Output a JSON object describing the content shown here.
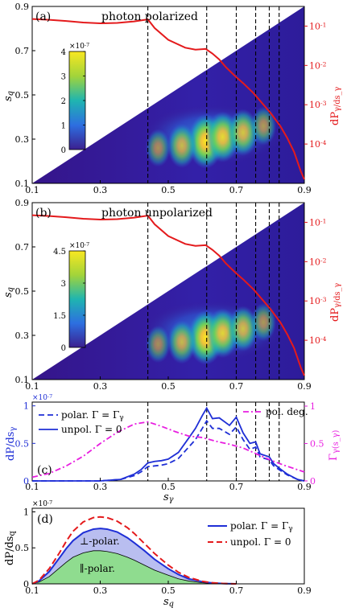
{
  "colors": {
    "red": "#e41a1c",
    "blue": "#1f2fd6",
    "magenta": "#e81ee0",
    "black": "#000000",
    "map_low": "#3b0f70",
    "map_high": "#f9e721",
    "perp_fill": "#b9bef0",
    "par_fill": "#8fdc8f"
  },
  "chart_data": [
    {
      "type": "heatmap",
      "panel": "(a)",
      "title": "photon polarized",
      "ylabel": "s_q",
      "y2label": "dP_γ/ds_γ",
      "x_ticks": [
        "0.1",
        "0.3",
        "0.5",
        "0.7",
        "0.9"
      ],
      "y_ticks": [
        "0.1",
        "0.3",
        "0.5",
        "0.7",
        "0.9"
      ],
      "y2_ticks": [
        "10^{-1}",
        "10^{-2}",
        "10^{-3}",
        "10^{-4}"
      ],
      "xlim": [
        0.1,
        0.9
      ],
      "ylim": [
        0.1,
        0.9
      ],
      "colorbar": {
        "exponent": "×10^{-7}",
        "ticks": [
          "4",
          "3",
          "2",
          "1",
          "0"
        ],
        "max": 4
      },
      "vlines": [
        0.44,
        0.613,
        0.7,
        0.757,
        0.797,
        0.826
      ],
      "hot_spots": [
        {
          "x": 0.61,
          "y": 0.29,
          "value": 4.0
        },
        {
          "x": 0.66,
          "y": 0.31,
          "value": 3.4
        },
        {
          "x": 0.72,
          "y": 0.33,
          "value": 2.8
        },
        {
          "x": 0.54,
          "y": 0.27,
          "value": 2.4
        },
        {
          "x": 0.78,
          "y": 0.36,
          "value": 1.6
        },
        {
          "x": 0.47,
          "y": 0.26,
          "value": 1.4
        }
      ],
      "spectrum": {
        "x": [
          0.1,
          0.15,
          0.2,
          0.25,
          0.3,
          0.35,
          0.4,
          0.44,
          0.46,
          0.5,
          0.55,
          0.58,
          0.61,
          0.63,
          0.65,
          0.67,
          0.7,
          0.72,
          0.75,
          0.77,
          0.8,
          0.83,
          0.85,
          0.87,
          0.89,
          0.9
        ],
        "log10y": [
          -0.82,
          -0.84,
          -0.87,
          -0.91,
          -0.93,
          -0.92,
          -0.88,
          -0.83,
          -1.05,
          -1.35,
          -1.55,
          -1.6,
          -1.58,
          -1.7,
          -1.85,
          -2.05,
          -2.3,
          -2.45,
          -2.7,
          -2.9,
          -3.2,
          -3.55,
          -3.85,
          -4.2,
          -4.7,
          -4.9
        ]
      }
    },
    {
      "type": "heatmap",
      "panel": "(b)",
      "title": "photon unpolarized",
      "ylabel": "s_q",
      "y2label": "dP_γ/ds_γ",
      "x_ticks": [
        "0.1",
        "0.3",
        "0.5",
        "0.7",
        "0.9"
      ],
      "y_ticks": [
        "0.1",
        "0.3",
        "0.5",
        "0.7",
        "0.9"
      ],
      "y2_ticks": [
        "10^{-1}",
        "10^{-2}",
        "10^{-3}",
        "10^{-4}"
      ],
      "xlim": [
        0.1,
        0.9
      ],
      "ylim": [
        0.1,
        0.9
      ],
      "colorbar": {
        "exponent": "×10^{-7}",
        "ticks": [
          "4.5",
          "3",
          "1.5",
          "0"
        ],
        "max": 4.5
      },
      "vlines": [
        0.44,
        0.613,
        0.7,
        0.757,
        0.797,
        0.826
      ],
      "hot_spots": [
        {
          "x": 0.61,
          "y": 0.29,
          "value": 4.5
        },
        {
          "x": 0.66,
          "y": 0.31,
          "value": 3.6
        },
        {
          "x": 0.72,
          "y": 0.33,
          "value": 2.9
        },
        {
          "x": 0.54,
          "y": 0.27,
          "value": 2.6
        },
        {
          "x": 0.78,
          "y": 0.36,
          "value": 1.7
        },
        {
          "x": 0.47,
          "y": 0.26,
          "value": 1.5
        }
      ],
      "spectrum": {
        "x": [
          0.1,
          0.15,
          0.2,
          0.25,
          0.3,
          0.35,
          0.4,
          0.44,
          0.46,
          0.5,
          0.55,
          0.58,
          0.61,
          0.63,
          0.65,
          0.67,
          0.7,
          0.72,
          0.75,
          0.77,
          0.8,
          0.83,
          0.85,
          0.87,
          0.89,
          0.9
        ],
        "log10y": [
          -0.82,
          -0.84,
          -0.87,
          -0.91,
          -0.93,
          -0.92,
          -0.88,
          -0.83,
          -1.05,
          -1.35,
          -1.55,
          -1.6,
          -1.58,
          -1.7,
          -1.85,
          -2.05,
          -2.3,
          -2.45,
          -2.7,
          -2.9,
          -3.2,
          -3.55,
          -3.85,
          -4.2,
          -4.7,
          -4.9
        ]
      }
    },
    {
      "type": "line",
      "panel": "(c)",
      "xlabel": "s_γ",
      "ylabel": "dP/ds_γ",
      "y2label": "Γ_γ(s_γ)",
      "exponent": "×10^{-7}",
      "x_ticks": [
        "0.1",
        "0.3",
        "0.5",
        "0.7",
        "0.9"
      ],
      "y_ticks": [
        "0",
        "0.5",
        "1"
      ],
      "y2_ticks": [
        "0",
        "0.5",
        "1"
      ],
      "xlim": [
        0.1,
        0.9
      ],
      "ylim": [
        0,
        1.05
      ],
      "y2lim": [
        0,
        1
      ],
      "vlines": [
        0.44,
        0.613,
        0.7,
        0.757,
        0.797,
        0.826
      ],
      "legend": [
        {
          "label": "polar. Γ = Γ_γ",
          "style": "dashed",
          "color": "blue"
        },
        {
          "label": "unpol. Γ = 0",
          "style": "solid",
          "color": "blue"
        },
        {
          "label": "pol. deg.",
          "style": "dashdot",
          "color": "magenta"
        }
      ],
      "series": [
        {
          "x": [
            0.1,
            0.3,
            0.36,
            0.4,
            0.42,
            0.44,
            0.46,
            0.48,
            0.5,
            0.53,
            0.56,
            0.58,
            0.6,
            0.613,
            0.63,
            0.65,
            0.68,
            0.7,
            0.72,
            0.74,
            0.757,
            0.77,
            0.797,
            0.81,
            0.826,
            0.85,
            0.88,
            0.9
          ],
          "y": [
            0,
            0,
            0.02,
            0.07,
            0.12,
            0.19,
            0.2,
            0.21,
            0.23,
            0.3,
            0.45,
            0.55,
            0.7,
            0.8,
            0.7,
            0.7,
            0.62,
            0.72,
            0.55,
            0.42,
            0.45,
            0.32,
            0.28,
            0.2,
            0.15,
            0.08,
            0.02,
            0
          ]
        },
        {
          "x": [
            0.1,
            0.3,
            0.36,
            0.4,
            0.42,
            0.44,
            0.46,
            0.48,
            0.5,
            0.53,
            0.56,
            0.58,
            0.6,
            0.613,
            0.63,
            0.65,
            0.68,
            0.7,
            0.72,
            0.74,
            0.757,
            0.77,
            0.797,
            0.81,
            0.826,
            0.85,
            0.88,
            0.9
          ],
          "y": [
            0,
            0,
            0.02,
            0.09,
            0.15,
            0.24,
            0.26,
            0.27,
            0.29,
            0.38,
            0.57,
            0.7,
            0.87,
            0.97,
            0.83,
            0.84,
            0.74,
            0.85,
            0.64,
            0.5,
            0.52,
            0.36,
            0.32,
            0.23,
            0.17,
            0.09,
            0.02,
            0
          ]
        },
        {
          "x": [
            0.1,
            0.15,
            0.2,
            0.25,
            0.3,
            0.35,
            0.4,
            0.44,
            0.48,
            0.52,
            0.56,
            0.6,
            0.64,
            0.68,
            0.72,
            0.76,
            0.8,
            0.84,
            0.88,
            0.9
          ],
          "y": [
            0.05,
            0.1,
            0.2,
            0.33,
            0.5,
            0.65,
            0.76,
            0.79,
            0.73,
            0.66,
            0.6,
            0.58,
            0.53,
            0.49,
            0.44,
            0.36,
            0.28,
            0.21,
            0.15,
            0.12
          ]
        }
      ]
    },
    {
      "type": "area",
      "panel": "(d)",
      "xlabel": "s_q",
      "ylabel": "dP/ds_q",
      "exponent": "×10^{-7}",
      "x_ticks": [
        "0.1",
        "0.3",
        "0.5",
        "0.7",
        "0.9"
      ],
      "y_ticks": [
        "0",
        "0.5",
        "1"
      ],
      "xlim": [
        0.1,
        0.9
      ],
      "ylim": [
        0,
        1.05
      ],
      "legend": [
        {
          "label": "polar. Γ = Γ_γ",
          "style": "solid",
          "color": "blue"
        },
        {
          "label": "unpol. Γ = 0",
          "style": "dashed",
          "color": "red"
        }
      ],
      "annotations": [
        "⊥-polar.",
        "∥-polar."
      ],
      "x": [
        0.1,
        0.12,
        0.15,
        0.18,
        0.2,
        0.22,
        0.25,
        0.28,
        0.3,
        0.32,
        0.35,
        0.38,
        0.4,
        0.43,
        0.46,
        0.5,
        0.53,
        0.56,
        0.6,
        0.63,
        0.66,
        0.7
      ],
      "series": [
        {
          "y": [
            0,
            0.04,
            0.17,
            0.36,
            0.49,
            0.6,
            0.71,
            0.76,
            0.77,
            0.76,
            0.72,
            0.64,
            0.57,
            0.46,
            0.34,
            0.21,
            0.13,
            0.07,
            0.03,
            0.012,
            0.004,
            0
          ]
        },
        {
          "y": [
            0,
            0.05,
            0.21,
            0.43,
            0.59,
            0.73,
            0.86,
            0.92,
            0.93,
            0.92,
            0.87,
            0.78,
            0.7,
            0.56,
            0.42,
            0.26,
            0.16,
            0.09,
            0.035,
            0.015,
            0.005,
            0
          ]
        },
        {
          "y": [
            0,
            0.025,
            0.1,
            0.22,
            0.3,
            0.37,
            0.43,
            0.46,
            0.46,
            0.45,
            0.42,
            0.37,
            0.33,
            0.26,
            0.19,
            0.12,
            0.07,
            0.04,
            0.015,
            0.006,
            0.002,
            0
          ]
        }
      ]
    }
  ]
}
